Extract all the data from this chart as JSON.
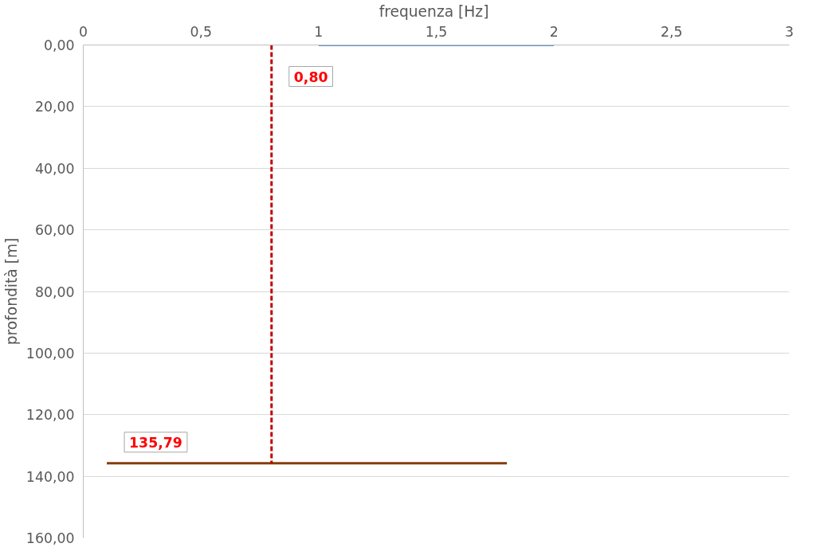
{
  "chart_data": {
    "type": "line",
    "xlabel": "frequenza  [Hz]",
    "ylabel": "profondità [m]",
    "xlim": [
      0,
      3
    ],
    "ylim": [
      160,
      0
    ],
    "xticks": [
      0,
      {
        "value": 0.5,
        "label": "0,5"
      },
      1,
      {
        "value": 1.5,
        "label": "1,5"
      },
      2,
      {
        "value": 2.5,
        "label": "2,5"
      },
      3
    ],
    "yticks": [
      {
        "value": 0,
        "label": "0,00"
      },
      {
        "value": 20,
        "label": "20,00"
      },
      {
        "value": 40,
        "label": "40,00"
      },
      {
        "value": 60,
        "label": "60,00"
      },
      {
        "value": 80,
        "label": "80,00"
      },
      {
        "value": 100,
        "label": "100,00"
      },
      {
        "value": 120,
        "label": "120,00"
      },
      {
        "value": 140,
        "label": "140,00"
      },
      {
        "value": 160,
        "label": "160,00"
      }
    ],
    "grid": "y",
    "marker": "none",
    "series": [
      {
        "color": "#5b9bd5",
        "x": [
          1,
          2
        ],
        "values": [
          0,
          0
        ]
      },
      {
        "color": "#843c0c",
        "x": [
          0.1,
          1.8
        ],
        "values": [
          135.79,
          135.79
        ]
      },
      {
        "color": "#c00000",
        "x": [
          0.8,
          0.8
        ],
        "values": [
          0,
          135.79
        ],
        "line_style": "dashed"
      }
    ],
    "annotations": [
      {
        "text": "0,80",
        "x": 0.8,
        "y": 0
      },
      {
        "text": "135,79",
        "x": 0.1,
        "y": 135.79
      }
    ]
  }
}
